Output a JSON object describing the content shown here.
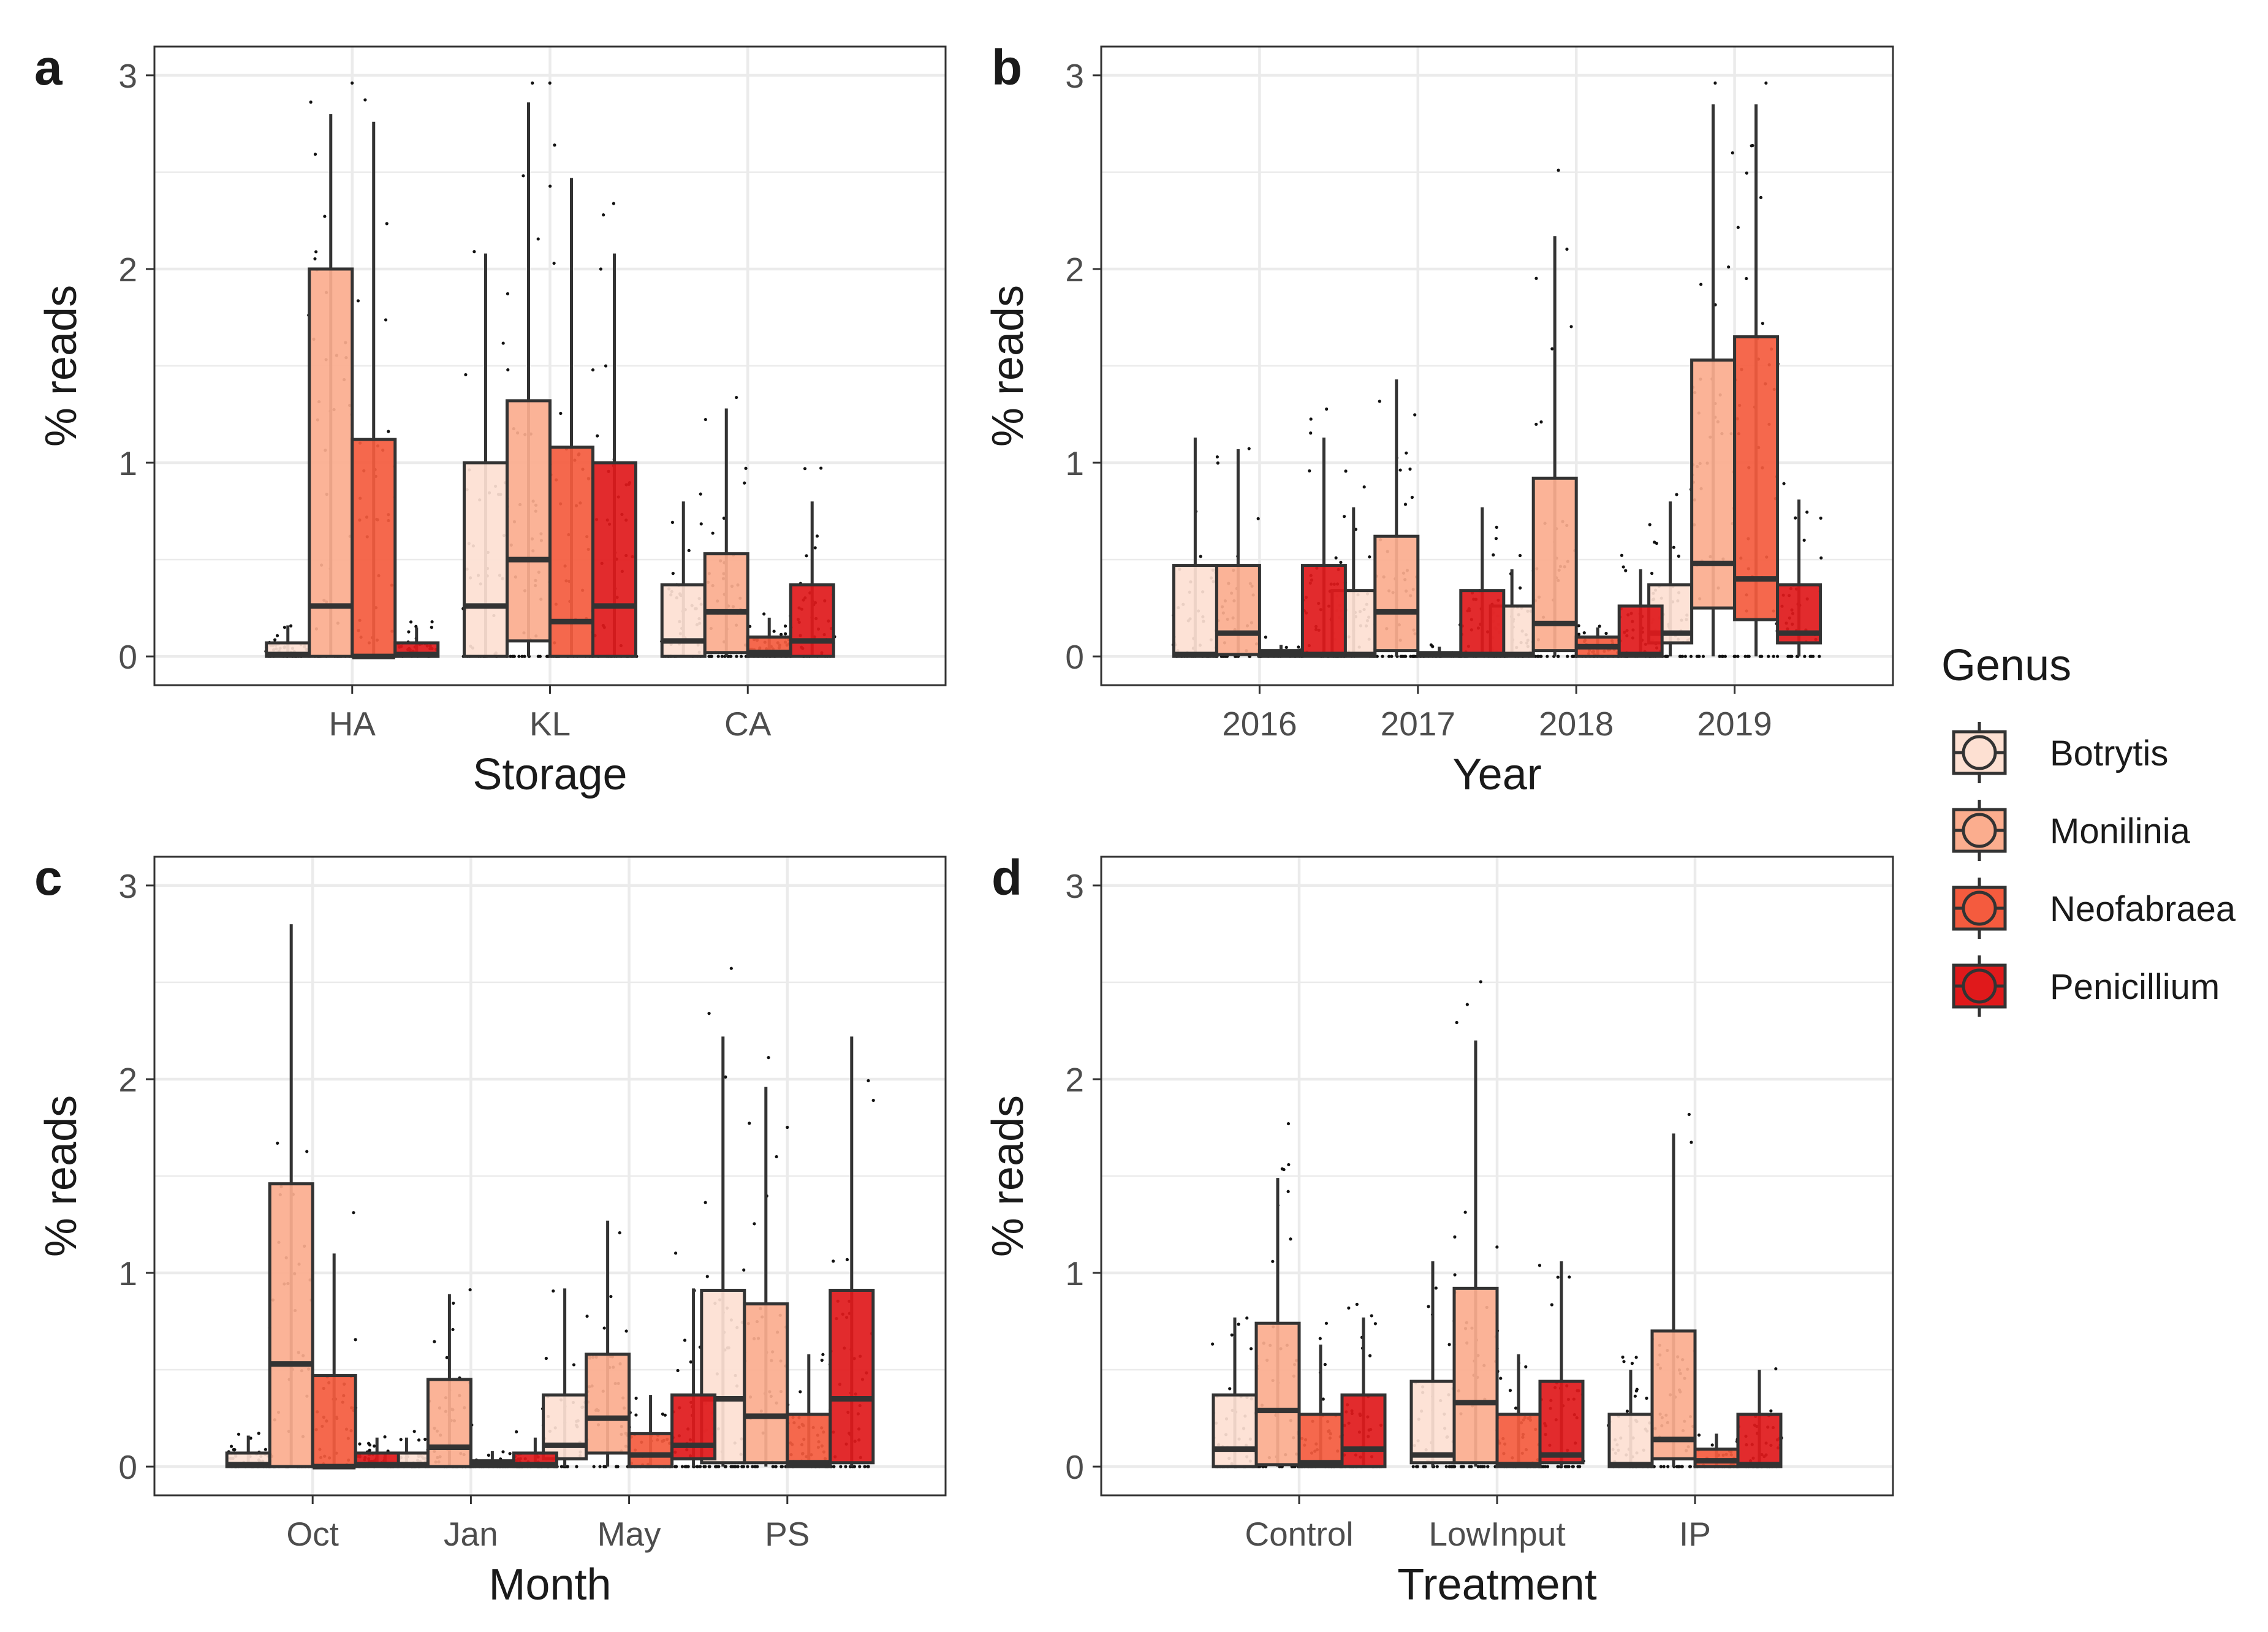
{
  "legend": {
    "title": "Genus",
    "items": [
      {
        "label": "Botrytis",
        "color": "#fde0d2"
      },
      {
        "label": "Monilinia",
        "color": "#fbad8e"
      },
      {
        "label": "Neofabraea",
        "color": "#f45b3e"
      },
      {
        "label": "Penicillium",
        "color": "#e0191b"
      }
    ]
  },
  "chart_data": [
    {
      "type": "box",
      "panel_label": "a",
      "xlabel": "Storage",
      "ylabel": "% reads",
      "ylim": [
        0,
        3
      ],
      "yticks": [
        "0",
        "1",
        "2",
        "3"
      ],
      "categories": [
        "HA",
        "KL",
        "CA"
      ],
      "series": [
        {
          "name": "Botrytis",
          "boxes": [
            {
              "q1": 0,
              "med": 0.01,
              "q3": 0.07,
              "lo": 0,
              "hi": 0.16
            },
            {
              "q1": 0,
              "med": 0.26,
              "q3": 1.0,
              "lo": 0,
              "hi": 2.08
            },
            {
              "q1": 0,
              "med": 0.08,
              "q3": 0.37,
              "lo": 0,
              "hi": 0.8
            }
          ]
        },
        {
          "name": "Monilinia",
          "boxes": [
            {
              "q1": 0,
              "med": 0.26,
              "q3": 2.0,
              "lo": 0,
              "hi": 2.8
            },
            {
              "q1": 0.08,
              "med": 0.5,
              "q3": 1.32,
              "lo": 0,
              "hi": 2.86
            },
            {
              "q1": 0.02,
              "med": 0.23,
              "q3": 0.53,
              "lo": 0,
              "hi": 1.28
            }
          ]
        },
        {
          "name": "Neofabraea",
          "boxes": [
            {
              "q1": 0,
              "med": 0,
              "q3": 1.12,
              "lo": 0,
              "hi": 2.76
            },
            {
              "q1": 0,
              "med": 0.18,
              "q3": 1.08,
              "lo": 0,
              "hi": 2.47
            },
            {
              "q1": 0,
              "med": 0.02,
              "q3": 0.1,
              "lo": 0,
              "hi": 0.2
            }
          ]
        },
        {
          "name": "Penicillium",
          "boxes": [
            {
              "q1": 0,
              "med": 0.01,
              "q3": 0.07,
              "lo": 0,
              "hi": 0.15
            },
            {
              "q1": 0,
              "med": 0.26,
              "q3": 1.0,
              "lo": 0,
              "hi": 2.08
            },
            {
              "q1": 0,
              "med": 0.08,
              "q3": 0.37,
              "lo": 0,
              "hi": 0.8
            }
          ]
        }
      ]
    },
    {
      "type": "box",
      "panel_label": "b",
      "xlabel": "Year",
      "ylabel": "% reads",
      "ylim": [
        0,
        3
      ],
      "yticks": [
        "0",
        "1",
        "2",
        "3"
      ],
      "categories": [
        "2016",
        "2017",
        "2018",
        "2019"
      ],
      "series": [
        {
          "name": "Botrytis",
          "boxes": [
            {
              "q1": 0,
              "med": 0.01,
              "q3": 0.47,
              "lo": 0,
              "hi": 1.13
            },
            {
              "q1": 0,
              "med": 0.01,
              "q3": 0.34,
              "lo": 0,
              "hi": 0.77
            },
            {
              "q1": 0,
              "med": 0.01,
              "q3": 0.26,
              "lo": 0,
              "hi": 0.45
            },
            {
              "q1": 0.07,
              "med": 0.12,
              "q3": 0.37,
              "lo": 0,
              "hi": 0.8
            }
          ]
        },
        {
          "name": "Monilinia",
          "boxes": [
            {
              "q1": 0.01,
              "med": 0.12,
              "q3": 0.47,
              "lo": 0,
              "hi": 1.07
            },
            {
              "q1": 0.03,
              "med": 0.23,
              "q3": 0.62,
              "lo": 0,
              "hi": 1.43
            },
            {
              "q1": 0.03,
              "med": 0.17,
              "q3": 0.92,
              "lo": 0,
              "hi": 2.17
            },
            {
              "q1": 0.25,
              "med": 0.48,
              "q3": 1.53,
              "lo": 0,
              "hi": 2.85
            }
          ]
        },
        {
          "name": "Neofabraea",
          "boxes": [
            {
              "q1": 0,
              "med": 0.01,
              "q3": 0.03,
              "lo": 0,
              "hi": 0.06
            },
            {
              "q1": 0,
              "med": 0.01,
              "q3": 0.02,
              "lo": 0,
              "hi": 0.05
            },
            {
              "q1": 0,
              "med": 0.05,
              "q3": 0.1,
              "lo": 0,
              "hi": 0.15
            },
            {
              "q1": 0.19,
              "med": 0.4,
              "q3": 1.65,
              "lo": 0,
              "hi": 2.85
            }
          ]
        },
        {
          "name": "Penicillium",
          "boxes": [
            {
              "q1": 0,
              "med": 0.01,
              "q3": 0.47,
              "lo": 0,
              "hi": 1.13
            },
            {
              "q1": 0,
              "med": 0.01,
              "q3": 0.34,
              "lo": 0,
              "hi": 0.77
            },
            {
              "q1": 0,
              "med": 0.01,
              "q3": 0.26,
              "lo": 0,
              "hi": 0.45
            },
            {
              "q1": 0.07,
              "med": 0.12,
              "q3": 0.37,
              "lo": 0,
              "hi": 0.81
            }
          ]
        }
      ]
    },
    {
      "type": "box",
      "panel_label": "c",
      "xlabel": "Month",
      "ylabel": "% reads",
      "ylim": [
        0,
        3
      ],
      "yticks": [
        "0",
        "1",
        "2",
        "3"
      ],
      "categories": [
        "Oct",
        "Jan",
        "May",
        "PS"
      ],
      "series": [
        {
          "name": "Botrytis",
          "boxes": [
            {
              "q1": 0,
              "med": 0.01,
              "q3": 0.07,
              "lo": 0,
              "hi": 0.16
            },
            {
              "q1": 0,
              "med": 0.01,
              "q3": 0.07,
              "lo": 0,
              "hi": 0.15
            },
            {
              "q1": 0.04,
              "med": 0.11,
              "q3": 0.37,
              "lo": 0,
              "hi": 0.92
            },
            {
              "q1": 0.02,
              "med": 0.35,
              "q3": 0.91,
              "lo": 0,
              "hi": 2.22
            }
          ]
        },
        {
          "name": "Monilinia",
          "boxes": [
            {
              "q1": 0,
              "med": 0.53,
              "q3": 1.46,
              "lo": 0,
              "hi": 2.8
            },
            {
              "q1": 0,
              "med": 0.1,
              "q3": 0.45,
              "lo": 0,
              "hi": 0.89
            },
            {
              "q1": 0.07,
              "med": 0.25,
              "q3": 0.58,
              "lo": 0,
              "hi": 1.27
            },
            {
              "q1": 0.02,
              "med": 0.26,
              "q3": 0.84,
              "lo": 0,
              "hi": 1.96
            }
          ]
        },
        {
          "name": "Neofabraea",
          "boxes": [
            {
              "q1": 0,
              "med": 0,
              "q3": 0.47,
              "lo": 0,
              "hi": 1.1
            },
            {
              "q1": 0,
              "med": 0.01,
              "q3": 0.03,
              "lo": 0,
              "hi": 0.08
            },
            {
              "q1": 0,
              "med": 0.06,
              "q3": 0.17,
              "lo": 0,
              "hi": 0.37
            },
            {
              "q1": 0,
              "med": 0.02,
              "q3": 0.27,
              "lo": 0,
              "hi": 0.58
            }
          ]
        },
        {
          "name": "Penicillium",
          "boxes": [
            {
              "q1": 0,
              "med": 0.01,
              "q3": 0.07,
              "lo": 0,
              "hi": 0.15
            },
            {
              "q1": 0,
              "med": 0.01,
              "q3": 0.07,
              "lo": 0,
              "hi": 0.15
            },
            {
              "q1": 0.04,
              "med": 0.11,
              "q3": 0.37,
              "lo": 0,
              "hi": 0.92
            },
            {
              "q1": 0.02,
              "med": 0.35,
              "q3": 0.91,
              "lo": 0,
              "hi": 2.22
            }
          ]
        }
      ]
    },
    {
      "type": "box",
      "panel_label": "d",
      "xlabel": "Treatment",
      "ylabel": "% reads",
      "ylim": [
        0,
        3
      ],
      "yticks": [
        "0",
        "1",
        "2",
        "3"
      ],
      "categories": [
        "Control",
        "LowInput",
        "IP"
      ],
      "series": [
        {
          "name": "Botrytis",
          "boxes": [
            {
              "q1": 0,
              "med": 0.09,
              "q3": 0.37,
              "lo": 0,
              "hi": 0.77
            },
            {
              "q1": 0.02,
              "med": 0.06,
              "q3": 0.44,
              "lo": 0,
              "hi": 1.06
            },
            {
              "q1": 0,
              "med": 0.01,
              "q3": 0.27,
              "lo": 0,
              "hi": 0.5
            }
          ]
        },
        {
          "name": "Monilinia",
          "boxes": [
            {
              "q1": 0.01,
              "med": 0.29,
              "q3": 0.74,
              "lo": 0,
              "hi": 1.49
            },
            {
              "q1": 0.02,
              "med": 0.33,
              "q3": 0.92,
              "lo": 0,
              "hi": 2.2
            },
            {
              "q1": 0.04,
              "med": 0.14,
              "q3": 0.7,
              "lo": 0,
              "hi": 1.72
            }
          ]
        },
        {
          "name": "Neofabraea",
          "boxes": [
            {
              "q1": 0,
              "med": 0.02,
              "q3": 0.27,
              "lo": 0,
              "hi": 0.63
            },
            {
              "q1": 0,
              "med": 0.01,
              "q3": 0.27,
              "lo": 0,
              "hi": 0.58
            },
            {
              "q1": 0,
              "med": 0.03,
              "q3": 0.09,
              "lo": 0,
              "hi": 0.17
            }
          ]
        },
        {
          "name": "Penicillium",
          "boxes": [
            {
              "q1": 0,
              "med": 0.09,
              "q3": 0.37,
              "lo": 0,
              "hi": 0.77
            },
            {
              "q1": 0.02,
              "med": 0.06,
              "q3": 0.44,
              "lo": 0,
              "hi": 1.06
            },
            {
              "q1": 0,
              "med": 0.01,
              "q3": 0.27,
              "lo": 0,
              "hi": 0.5
            }
          ]
        }
      ]
    }
  ]
}
